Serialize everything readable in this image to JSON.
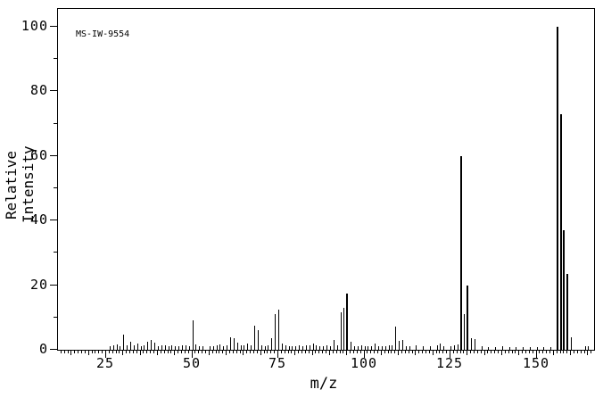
{
  "chart": {
    "id_label": "MS-IW-9554"
  },
  "chart_data": {
    "type": "bar",
    "subtype": "mass-spectrum-stick-plot",
    "title": "",
    "annotation": "MS-IW-9554",
    "xlabel": "m/z",
    "ylabel": "Relative Intensity",
    "xlim": [
      11,
      166.7
    ],
    "ylim": [
      0,
      105.5
    ],
    "x_ticks": [
      25,
      50,
      75,
      100,
      125,
      150
    ],
    "y_ticks": [
      0,
      20,
      40,
      60,
      80,
      100
    ],
    "x_minor_tick_step": 1,
    "x_medium_tick_step": 5,
    "y_minor_tick_step": 10,
    "grid": "off",
    "legend": "none",
    "peaks": [
      [
        26,
        1.2
      ],
      [
        27,
        1.3
      ],
      [
        28,
        1.6
      ],
      [
        29,
        1.2
      ],
      [
        30,
        4.6
      ],
      [
        31,
        1.3
      ],
      [
        32,
        2.6
      ],
      [
        33,
        1.5
      ],
      [
        34,
        2.0
      ],
      [
        35,
        1.0
      ],
      [
        36,
        1.3
      ],
      [
        37,
        2.5
      ],
      [
        38,
        2.9
      ],
      [
        39,
        2.2
      ],
      [
        40,
        1.2
      ],
      [
        41,
        1.3
      ],
      [
        42,
        1.3
      ],
      [
        43,
        1.0
      ],
      [
        44,
        1.5
      ],
      [
        45,
        1.2
      ],
      [
        46,
        1.0
      ],
      [
        47,
        1.3
      ],
      [
        48,
        1.5
      ],
      [
        49,
        1.0
      ],
      [
        50,
        9.0
      ],
      [
        51,
        1.6
      ],
      [
        52,
        1.2
      ],
      [
        53,
        1.0
      ],
      [
        55,
        1.2
      ],
      [
        56,
        1.2
      ],
      [
        57,
        1.4
      ],
      [
        58,
        1.6
      ],
      [
        59,
        1.0
      ],
      [
        60,
        1.4
      ],
      [
        61,
        3.8
      ],
      [
        62,
        3.5
      ],
      [
        63,
        2.2
      ],
      [
        64,
        1.4
      ],
      [
        65,
        1.4
      ],
      [
        66,
        2.0
      ],
      [
        67,
        1.3
      ],
      [
        68,
        7.5
      ],
      [
        69,
        6.0
      ],
      [
        70,
        1.4
      ],
      [
        71,
        1.0
      ],
      [
        72,
        1.3
      ],
      [
        73,
        3.5
      ],
      [
        74,
        11.0
      ],
      [
        75,
        12.5
      ],
      [
        76,
        1.8
      ],
      [
        77,
        1.4
      ],
      [
        78,
        1.0
      ],
      [
        79,
        1.2
      ],
      [
        80,
        1.0
      ],
      [
        81,
        1.3
      ],
      [
        82,
        1.0
      ],
      [
        83,
        1.3
      ],
      [
        84,
        1.3
      ],
      [
        85,
        2.0
      ],
      [
        86,
        1.4
      ],
      [
        87,
        1.2
      ],
      [
        88,
        1.2
      ],
      [
        89,
        1.4
      ],
      [
        90,
        1.0
      ],
      [
        91,
        3.0
      ],
      [
        92,
        1.4
      ],
      [
        93,
        11.5
      ],
      [
        94,
        13.0
      ],
      [
        95,
        17.5
      ],
      [
        96,
        2.5
      ],
      [
        97,
        1.2
      ],
      [
        98,
        1.0
      ],
      [
        99,
        1.4
      ],
      [
        100,
        1.0
      ],
      [
        101,
        1.2
      ],
      [
        102,
        1.0
      ],
      [
        103,
        2.0
      ],
      [
        104,
        1.0
      ],
      [
        105,
        1.2
      ],
      [
        106,
        1.0
      ],
      [
        107,
        1.3
      ],
      [
        108,
        1.5
      ],
      [
        109,
        7.2
      ],
      [
        110,
        2.7
      ],
      [
        111,
        2.9
      ],
      [
        112,
        1.0
      ],
      [
        113,
        1.2
      ],
      [
        115,
        1.3
      ],
      [
        117,
        1.2
      ],
      [
        119,
        1.2
      ],
      [
        121,
        1.3
      ],
      [
        122,
        1.9
      ],
      [
        123,
        1.2
      ],
      [
        125,
        1.2
      ],
      [
        126,
        1.3
      ],
      [
        127,
        1.6
      ],
      [
        128,
        60.0
      ],
      [
        129,
        11.0
      ],
      [
        130,
        20.0
      ],
      [
        131,
        3.5
      ],
      [
        132,
        3.3
      ],
      [
        134,
        1.0
      ],
      [
        136,
        0.8
      ],
      [
        138,
        0.8
      ],
      [
        140,
        1.0
      ],
      [
        142,
        0.8
      ],
      [
        144,
        0.8
      ],
      [
        146,
        0.8
      ],
      [
        148,
        0.8
      ],
      [
        150,
        0.8
      ],
      [
        152,
        0.8
      ],
      [
        154,
        0.8
      ],
      [
        156,
        100.0
      ],
      [
        157,
        73.0
      ],
      [
        158,
        37.0
      ],
      [
        159,
        23.5
      ],
      [
        160,
        4.0
      ],
      [
        164,
        1.0
      ],
      [
        165,
        1.0
      ]
    ]
  }
}
